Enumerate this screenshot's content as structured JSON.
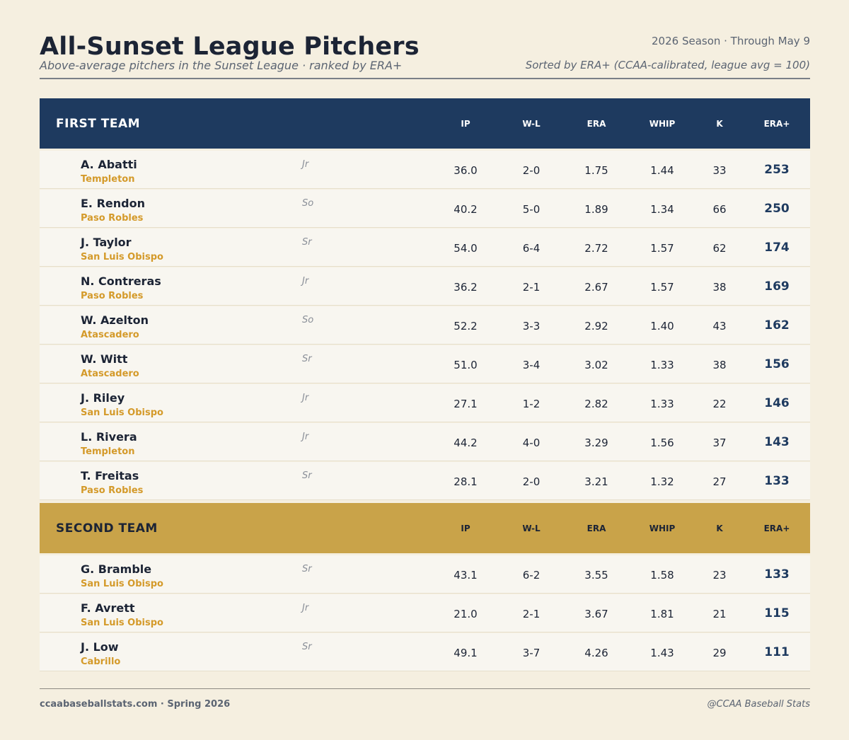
{
  "header": {
    "title": "All-Sunset League Pitchers",
    "subtitle": "Above-average pitchers in the Sunset League  ·  ranked by ERA+",
    "season": "2026 Season  ·  Through May 9",
    "sort_note": "Sorted by ERA+ (CCAA-calibrated, league avg = 100)"
  },
  "columns": [
    "IP",
    "W-L",
    "ERA",
    "WHIP",
    "K",
    "ERA+"
  ],
  "teams": [
    {
      "name": "FIRST TEAM",
      "rows": [
        {
          "name": "A. Abatti",
          "school": "Templeton",
          "class": "Jr",
          "ip": "36.0",
          "wl": "2-0",
          "era": "1.75",
          "whip": "1.44",
          "k": "33",
          "era_plus": "253"
        },
        {
          "name": "E. Rendon",
          "school": "Paso Robles",
          "class": "So",
          "ip": "40.2",
          "wl": "5-0",
          "era": "1.89",
          "whip": "1.34",
          "k": "66",
          "era_plus": "250"
        },
        {
          "name": "J. Taylor",
          "school": "San Luis Obispo",
          "class": "Sr",
          "ip": "54.0",
          "wl": "6-4",
          "era": "2.72",
          "whip": "1.57",
          "k": "62",
          "era_plus": "174"
        },
        {
          "name": "N. Contreras",
          "school": "Paso Robles",
          "class": "Jr",
          "ip": "36.2",
          "wl": "2-1",
          "era": "2.67",
          "whip": "1.57",
          "k": "38",
          "era_plus": "169"
        },
        {
          "name": "W. Azelton",
          "school": "Atascadero",
          "class": "So",
          "ip": "52.2",
          "wl": "3-3",
          "era": "2.92",
          "whip": "1.40",
          "k": "43",
          "era_plus": "162"
        },
        {
          "name": "W. Witt",
          "school": "Atascadero",
          "class": "Sr",
          "ip": "51.0",
          "wl": "3-4",
          "era": "3.02",
          "whip": "1.33",
          "k": "38",
          "era_plus": "156"
        },
        {
          "name": "J. Riley",
          "school": "San Luis Obispo",
          "class": "Jr",
          "ip": "27.1",
          "wl": "1-2",
          "era": "2.82",
          "whip": "1.33",
          "k": "22",
          "era_plus": "146"
        },
        {
          "name": "L. Rivera",
          "school": "Templeton",
          "class": "Jr",
          "ip": "44.2",
          "wl": "4-0",
          "era": "3.29",
          "whip": "1.56",
          "k": "37",
          "era_plus": "143"
        },
        {
          "name": "T. Freitas",
          "school": "Paso Robles",
          "class": "Sr",
          "ip": "28.1",
          "wl": "2-0",
          "era": "3.21",
          "whip": "1.32",
          "k": "27",
          "era_plus": "133"
        }
      ]
    },
    {
      "name": "SECOND TEAM",
      "rows": [
        {
          "name": "G. Bramble",
          "school": "San Luis Obispo",
          "class": "Sr",
          "ip": "43.1",
          "wl": "6-2",
          "era": "3.55",
          "whip": "1.58",
          "k": "23",
          "era_plus": "133"
        },
        {
          "name": "F. Avrett",
          "school": "San Luis Obispo",
          "class": "Jr",
          "ip": "21.0",
          "wl": "2-1",
          "era": "3.67",
          "whip": "1.81",
          "k": "21",
          "era_plus": "115"
        },
        {
          "name": "J. Low",
          "school": "Cabrillo",
          "class": "Sr",
          "ip": "49.1",
          "wl": "3-7",
          "era": "4.26",
          "whip": "1.43",
          "k": "29",
          "era_plus": "111"
        }
      ]
    }
  ],
  "footer": {
    "left": "ccaabaseballstats.com  ·  Spring 2026",
    "right": "@CCAA Baseball Stats"
  },
  "colors": {
    "background": "#f5efe0",
    "first_team": "#1e3a5f",
    "second_team": "#c9a349",
    "school_accent": "#d49a2a"
  }
}
